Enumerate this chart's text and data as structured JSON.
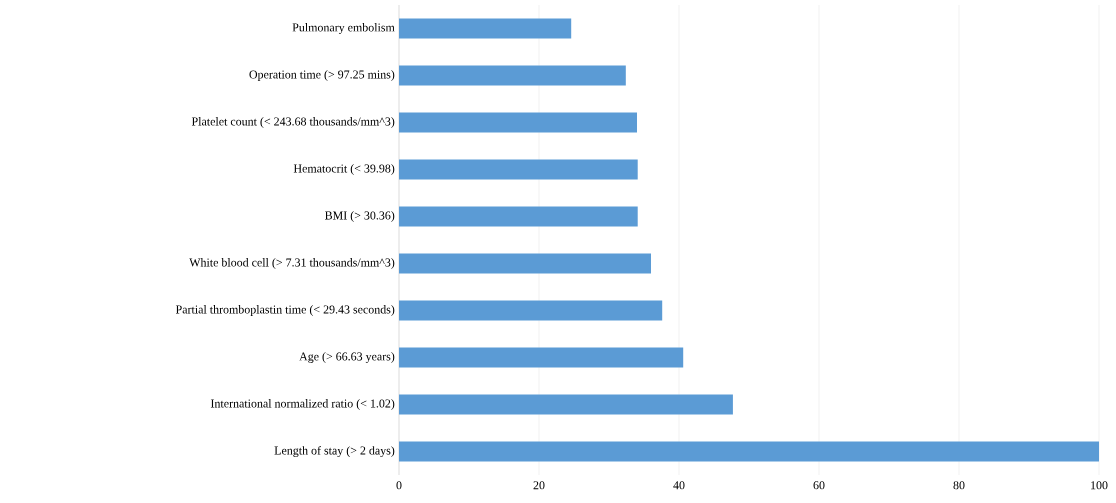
{
  "chart_data": {
    "type": "bar",
    "orientation": "horizontal",
    "categories": [
      "Pulmonary embolism",
      "Operation time (> 97.25 mins)",
      "Platelet count (< 243.68 thousands/mm^3)",
      "Hematocrit (< 39.98)",
      "BMI (> 30.36)",
      "White blood cell (> 7.31 thousands/mm^3)",
      "Partial thromboplastin time (< 29.43 seconds)",
      "Age (> 66.63 years)",
      "International normalized ratio (< 1.02)",
      "Length of stay (> 2 days)"
    ],
    "values": [
      24.6,
      32.4,
      34,
      34.1,
      34.1,
      36,
      37.6,
      40.6,
      47.7,
      100
    ],
    "color": "#5b9bd5",
    "xlim": [
      0,
      100
    ],
    "xticks": [
      0,
      20,
      40,
      60,
      80,
      100
    ],
    "grid": "x"
  }
}
